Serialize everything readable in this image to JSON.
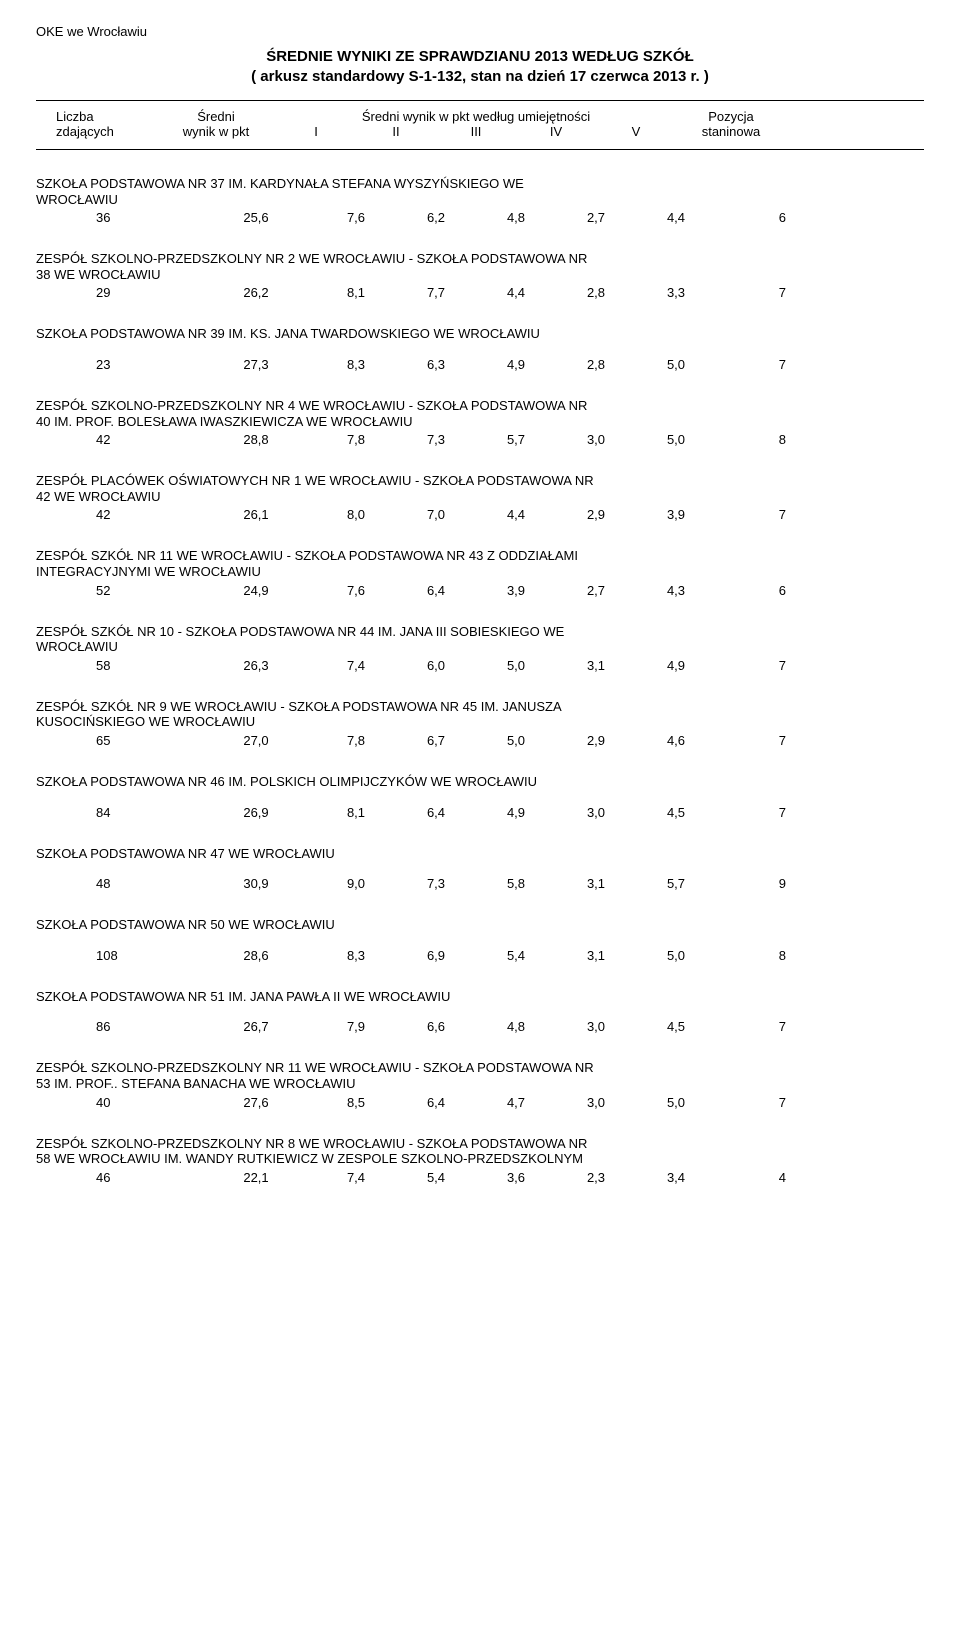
{
  "corner": "OKE we Wrocławiu",
  "title_line1": "ŚREDNIE WYNIKI ZE SPRAWDZIANU 2013 WEDŁUG SZKÓŁ",
  "title_line2": "( arkusz standardowy S-1-132, stan na dzień 17 czerwca 2013 r. )",
  "header": {
    "liczba1": "Liczba",
    "liczba2": "zdających",
    "sredni1": "Średni",
    "sredni2": "wynik w pkt",
    "super": "Średni wynik w pkt według umiejętności",
    "c1": "I",
    "c2": "II",
    "c3": "III",
    "c4": "IV",
    "c5": "V",
    "poz1": "Pozycja",
    "poz2": "staninowa"
  },
  "rows": [
    {
      "name": "SZKOŁA PODSTAWOWA NR 37 IM. KARDYNAŁA STEFANA WYSZYŃSKIEGO WE\nWROCŁAWIU",
      "n": "36",
      "a": "25,6",
      "v1": "7,6",
      "v2": "6,2",
      "v3": "4,8",
      "v4": "2,7",
      "v5": "4,4",
      "s": "6"
    },
    {
      "name": "ZESPÓŁ SZKOLNO-PRZEDSZKOLNY NR 2 WE WROCŁAWIU - SZKOŁA PODSTAWOWA NR\n38 WE WROCŁAWIU",
      "n": "29",
      "a": "26,2",
      "v1": "8,1",
      "v2": "7,7",
      "v3": "4,4",
      "v4": "2,8",
      "v5": "3,3",
      "s": "7"
    },
    {
      "name": "SZKOŁA PODSTAWOWA NR 39 IM. KS. JANA TWARDOWSKIEGO WE WROCŁAWIU",
      "gap": true,
      "n": "23",
      "a": "27,3",
      "v1": "8,3",
      "v2": "6,3",
      "v3": "4,9",
      "v4": "2,8",
      "v5": "5,0",
      "s": "7"
    },
    {
      "name": "ZESPÓŁ SZKOLNO-PRZEDSZKOLNY NR 4 WE WROCŁAWIU - SZKOŁA PODSTAWOWA NR\n40 IM. PROF. BOLESŁAWA IWASZKIEWICZA WE WROCŁAWIU",
      "n": "42",
      "a": "28,8",
      "v1": "7,8",
      "v2": "7,3",
      "v3": "5,7",
      "v4": "3,0",
      "v5": "5,0",
      "s": "8"
    },
    {
      "name": "ZESPÓŁ PLACÓWEK OŚWIATOWYCH NR 1 WE WROCŁAWIU - SZKOŁA PODSTAWOWA NR\n42 WE WROCŁAWIU",
      "n": "42",
      "a": "26,1",
      "v1": "8,0",
      "v2": "7,0",
      "v3": "4,4",
      "v4": "2,9",
      "v5": "3,9",
      "s": "7"
    },
    {
      "name": "ZESPÓŁ SZKÓŁ NR 11 WE WROCŁAWIU - SZKOŁA PODSTAWOWA NR 43 Z ODDZIAŁAMI\nINTEGRACYJNYMI WE WROCŁAWIU",
      "n": "52",
      "a": "24,9",
      "v1": "7,6",
      "v2": "6,4",
      "v3": "3,9",
      "v4": "2,7",
      "v5": "4,3",
      "s": "6"
    },
    {
      "name": "ZESPÓŁ SZKÓŁ NR 10 - SZKOŁA PODSTAWOWA NR 44 IM. JANA III SOBIESKIEGO WE\nWROCŁAWIU",
      "n": "58",
      "a": "26,3",
      "v1": "7,4",
      "v2": "6,0",
      "v3": "5,0",
      "v4": "3,1",
      "v5": "4,9",
      "s": "7"
    },
    {
      "name": "ZESPÓŁ SZKÓŁ NR 9 WE WROCŁAWIU - SZKOŁA PODSTAWOWA NR 45 IM. JANUSZA\nKUSOCIŃSKIEGO WE WROCŁAWIU",
      "n": "65",
      "a": "27,0",
      "v1": "7,8",
      "v2": "6,7",
      "v3": "5,0",
      "v4": "2,9",
      "v5": "4,6",
      "s": "7"
    },
    {
      "name": "SZKOŁA PODSTAWOWA NR 46 IM. POLSKICH OLIMPIJCZYKÓW WE WROCŁAWIU",
      "gap": true,
      "n": "84",
      "a": "26,9",
      "v1": "8,1",
      "v2": "6,4",
      "v3": "4,9",
      "v4": "3,0",
      "v5": "4,5",
      "s": "7"
    },
    {
      "name": "SZKOŁA PODSTAWOWA NR 47 WE WROCŁAWIU",
      "gap": true,
      "n": "48",
      "a": "30,9",
      "v1": "9,0",
      "v2": "7,3",
      "v3": "5,8",
      "v4": "3,1",
      "v5": "5,7",
      "s": "9"
    },
    {
      "name": "SZKOŁA PODSTAWOWA NR 50 WE WROCŁAWIU",
      "gap": true,
      "n": "108",
      "a": "28,6",
      "v1": "8,3",
      "v2": "6,9",
      "v3": "5,4",
      "v4": "3,1",
      "v5": "5,0",
      "s": "8"
    },
    {
      "name": "SZKOŁA PODSTAWOWA NR 51 IM. JANA PAWŁA II WE WROCŁAWIU",
      "gap": true,
      "n": "86",
      "a": "26,7",
      "v1": "7,9",
      "v2": "6,6",
      "v3": "4,8",
      "v4": "3,0",
      "v5": "4,5",
      "s": "7"
    },
    {
      "name": "ZESPÓŁ SZKOLNO-PRZEDSZKOLNY NR 11 WE WROCŁAWIU - SZKOŁA PODSTAWOWA NR\n53 IM. PROF.. STEFANA BANACHA WE WROCŁAWIU",
      "n": "40",
      "a": "27,6",
      "v1": "8,5",
      "v2": "6,4",
      "v3": "4,7",
      "v4": "3,0",
      "v5": "5,0",
      "s": "7"
    },
    {
      "name": "ZESPÓŁ SZKOLNO-PRZEDSZKOLNY NR 8 WE WROCŁAWIU - SZKOŁA PODSTAWOWA NR\n58 WE WROCŁAWIU IM. WANDY RUTKIEWICZ W ZESPOLE SZKOLNO-PRZEDSZKOLNYM",
      "n": "46",
      "a": "22,1",
      "v1": "7,4",
      "v2": "5,4",
      "v3": "3,6",
      "v4": "2,3",
      "v5": "3,4",
      "s": "4"
    }
  ]
}
